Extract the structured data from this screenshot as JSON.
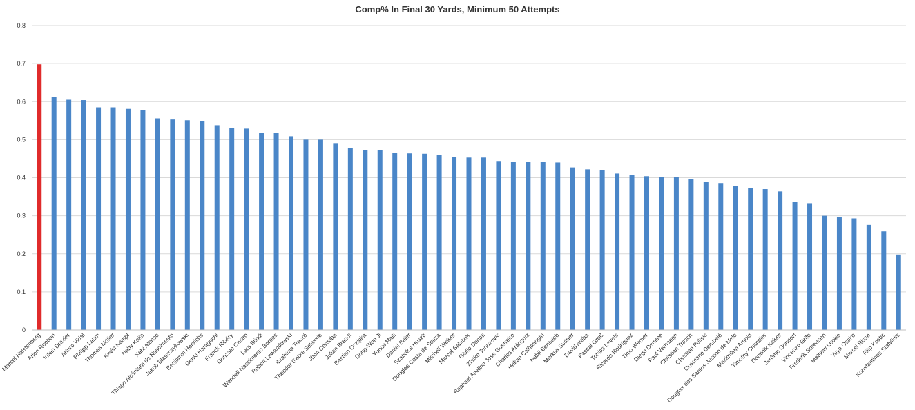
{
  "chart_data": {
    "type": "bar",
    "title": "Comp% In Final 30 Yards, Minimum 50 Attempts",
    "xlabel": "",
    "ylabel": "",
    "ylim": [
      0,
      0.8
    ],
    "yticks": [
      "0",
      "0.1",
      "0.2",
      "0.3",
      "0.4",
      "0.5",
      "0.6",
      "0.7",
      "0.8"
    ],
    "grid": true,
    "bar_color": "#4a86c8",
    "highlight_color": "#e02b2b",
    "highlight_index": 0,
    "categories": [
      "Marcel Halstenberg",
      "Arjen Robben",
      "Julian Draxler",
      "Arturo Vidal",
      "Philipp Lahm",
      "Thomas Müller",
      "Kevin Kampl",
      "Naby Keita",
      "Xabi Alonso",
      "Thiago Alcántara do Nascimento",
      "Jakub Błaszczykowski",
      "Benjamin Henrichs",
      "Genki Haraguchi",
      "Franck Ribéry",
      "Gonzalo Castro",
      "Lars Stindl",
      "Wendell Nascimento Borges",
      "Robert Lewandowski",
      "Ibrahima Traoré",
      "Theodor Gebre Selassie",
      "Jhon Córdoba",
      "Julian Brandt",
      "Bastian Oczipka",
      "Dong-Won Ji",
      "Yunus Malli",
      "Daniel Baier",
      "Szabolcs Huszti",
      "Douglas Costa de Souza",
      "Mitchell Weiser",
      "Marcel Sabitzer",
      "Giulio Donati",
      "Zlatko Junuzovic",
      "Raphael Adelino Jose Guerreiro",
      "Charles Aránguiz",
      "Hakan Calhanoglu",
      "Nabil Bentaleb",
      "Markus Suttner",
      "David Alaba",
      "Pascal Groß",
      "Tobias Levels",
      "Ricardo Rodríguez",
      "Timo Werner",
      "Diego Demme",
      "Paul Verhaegh",
      "Christian Träsch",
      "Christian Pulisic",
      "Ousmane Dembélé",
      "Douglas dos Santos Justino de Melo",
      "Maximilian Arnold",
      "Timothy Chandler",
      "Dominik Kaiser",
      "Jérôme Gondorf",
      "Vincenzo Grifo",
      "Frederik Sörensen",
      "Mathew Leckie",
      "Yuya Osako",
      "Marcel Risse",
      "Filip Kostic",
      "Konstantinos Stafylidis"
    ],
    "values": [
      0.698,
      0.612,
      0.605,
      0.604,
      0.585,
      0.585,
      0.581,
      0.578,
      0.556,
      0.553,
      0.551,
      0.548,
      0.538,
      0.531,
      0.529,
      0.518,
      0.517,
      0.509,
      0.5,
      0.5,
      0.491,
      0.478,
      0.472,
      0.472,
      0.465,
      0.464,
      0.463,
      0.46,
      0.455,
      0.453,
      0.453,
      0.444,
      0.442,
      0.442,
      0.442,
      0.44,
      0.427,
      0.422,
      0.42,
      0.411,
      0.407,
      0.404,
      0.402,
      0.401,
      0.397,
      0.389,
      0.386,
      0.379,
      0.373,
      0.37,
      0.364,
      0.336,
      0.333,
      0.3,
      0.297,
      0.293,
      0.276,
      0.259,
      0.198
    ]
  }
}
